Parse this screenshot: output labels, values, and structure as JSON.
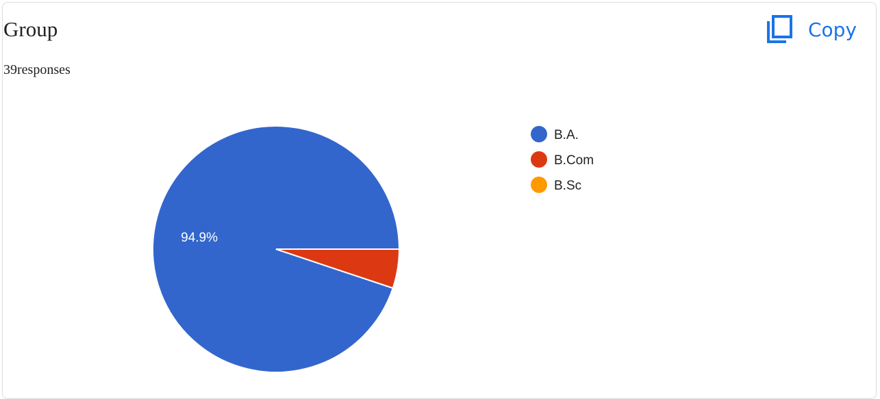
{
  "header": {
    "title": "Group",
    "responses": "39responses",
    "copy_label": "Copy"
  },
  "icons": {
    "copy": "copy-icon"
  },
  "colors": {
    "accent": "#1a73e8",
    "text": "#202124"
  },
  "chart_data": {
    "type": "pie",
    "total_responses": 39,
    "slices": [
      {
        "label": "B.A.",
        "value": 37,
        "percent": 94.9,
        "percent_label": "94.9%",
        "color": "#3366cc",
        "show_label": true
      },
      {
        "label": "B.Com",
        "value": 2,
        "percent": 5.1,
        "percent_label": "",
        "color": "#dc3912",
        "show_label": false
      },
      {
        "label": "B.Sc",
        "value": 0,
        "percent": 0,
        "percent_label": "",
        "color": "#ff9900",
        "show_label": false
      }
    ],
    "legend_position": "right"
  }
}
